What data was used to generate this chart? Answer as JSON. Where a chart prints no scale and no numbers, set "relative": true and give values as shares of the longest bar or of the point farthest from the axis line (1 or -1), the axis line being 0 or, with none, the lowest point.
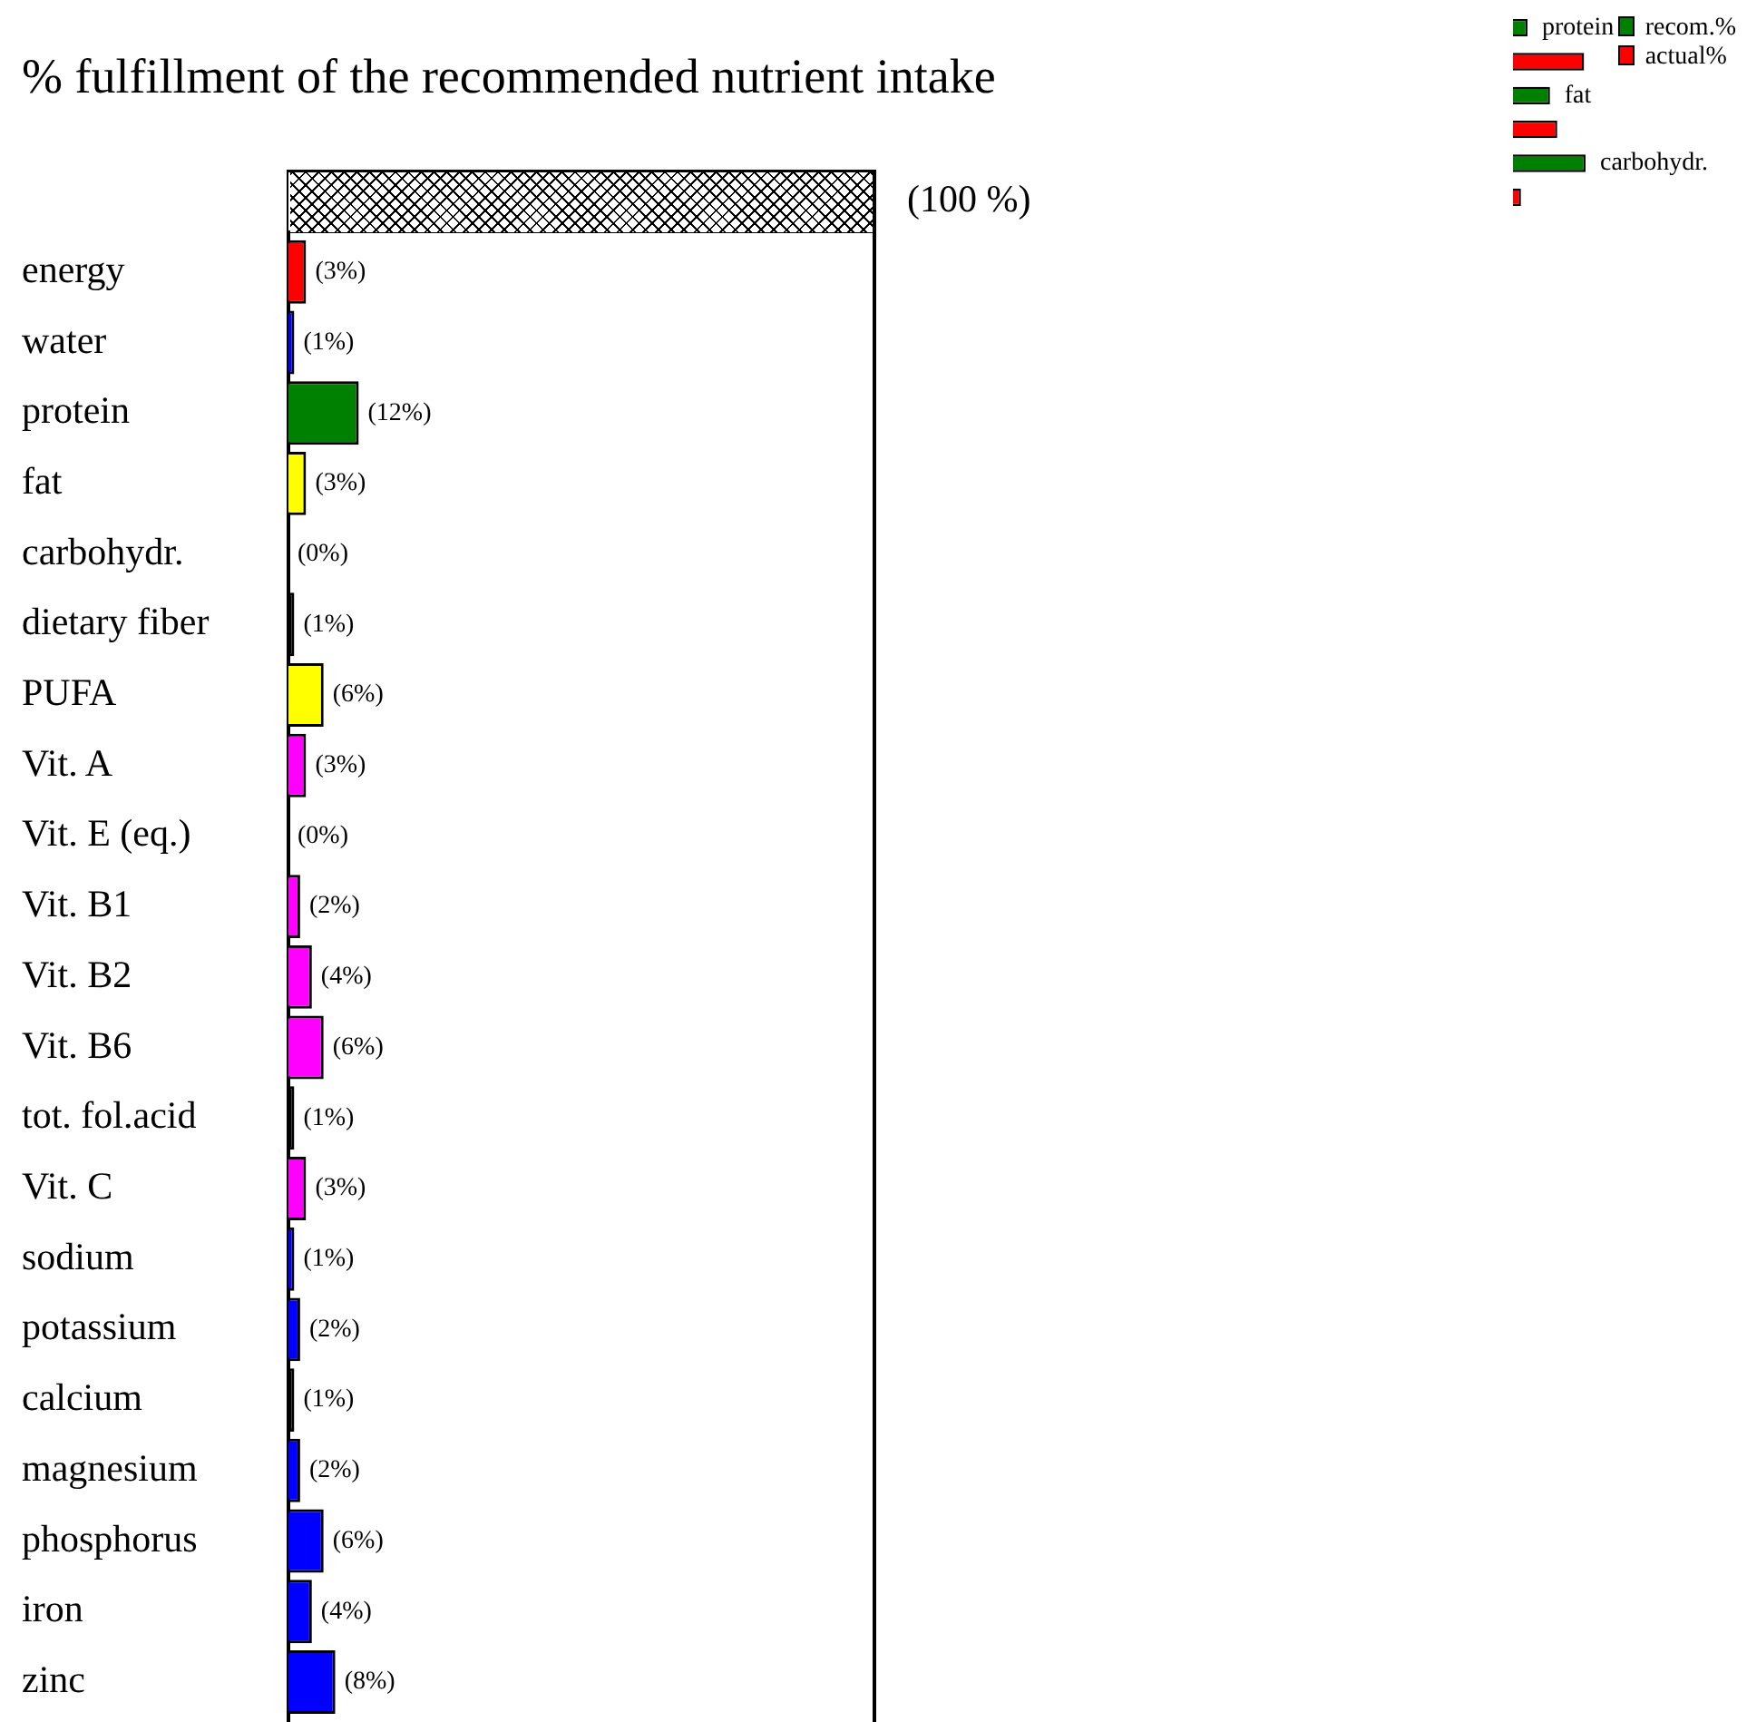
{
  "chart_data": [
    {
      "type": "bar",
      "orientation": "horizontal",
      "title": "% fulfillment of the recommended nutrient intake",
      "categories": [
        null,
        "energy",
        "water",
        "protein",
        "fat",
        "carbohydr.",
        "dietary fiber",
        "PUFA",
        "Vit. A",
        "Vit. E (eq.)",
        "Vit. B1",
        "Vit. B2",
        "Vit. B6",
        "tot. fol.acid",
        "Vit. C",
        "sodium",
        "potassium",
        "calcium",
        "magnesium",
        "phosphorus",
        "iron",
        "zinc"
      ],
      "values": [
        100,
        3,
        1,
        12,
        3,
        0,
        1,
        6,
        3,
        0,
        2,
        4,
        6,
        1,
        3,
        1,
        2,
        1,
        2,
        6,
        4,
        8
      ],
      "value_labels": [
        "(100 %)",
        "(3%)",
        "(1%)",
        "(12%)",
        "(3%)",
        "(0%)",
        "(1%)",
        "(6%)",
        "(3%)",
        "(0%)",
        "(2%)",
        "(4%)",
        "(6%)",
        "(1%)",
        "(3%)",
        "(1%)",
        "(2%)",
        "(1%)",
        "(2%)",
        "(6%)",
        "(4%)",
        "(8%)"
      ],
      "colors": [
        "#ffffff",
        "#ff0000",
        "#0000ff",
        "#008000",
        "#ffff00",
        "#000000",
        "#000000",
        "#ffff00",
        "#ff00ff",
        "#ff00ff",
        "#ff00ff",
        "#ff00ff",
        "#ff00ff",
        "#000000",
        "#ff00ff",
        "#0000ff",
        "#0000ff",
        "#000000",
        "#0000ff",
        "#0000ff",
        "#0000ff",
        "#0000ff"
      ],
      "xlim": [
        0,
        100
      ],
      "tick_labels": "y"
    },
    {
      "type": "bar",
      "orientation": "horizontal",
      "relative": true,
      "categories": [
        "protein",
        "fat",
        "carbohydr."
      ],
      "series": [
        {
          "name": "recom.%",
          "color": "#008000",
          "values": [
            0.2,
            0.51,
            1
          ]
        },
        {
          "name": "actual%",
          "color": "#ff0000",
          "values": [
            0.98,
            0.61,
            0.11
          ]
        }
      ],
      "tick_labels": false,
      "legend": "top right"
    }
  ]
}
